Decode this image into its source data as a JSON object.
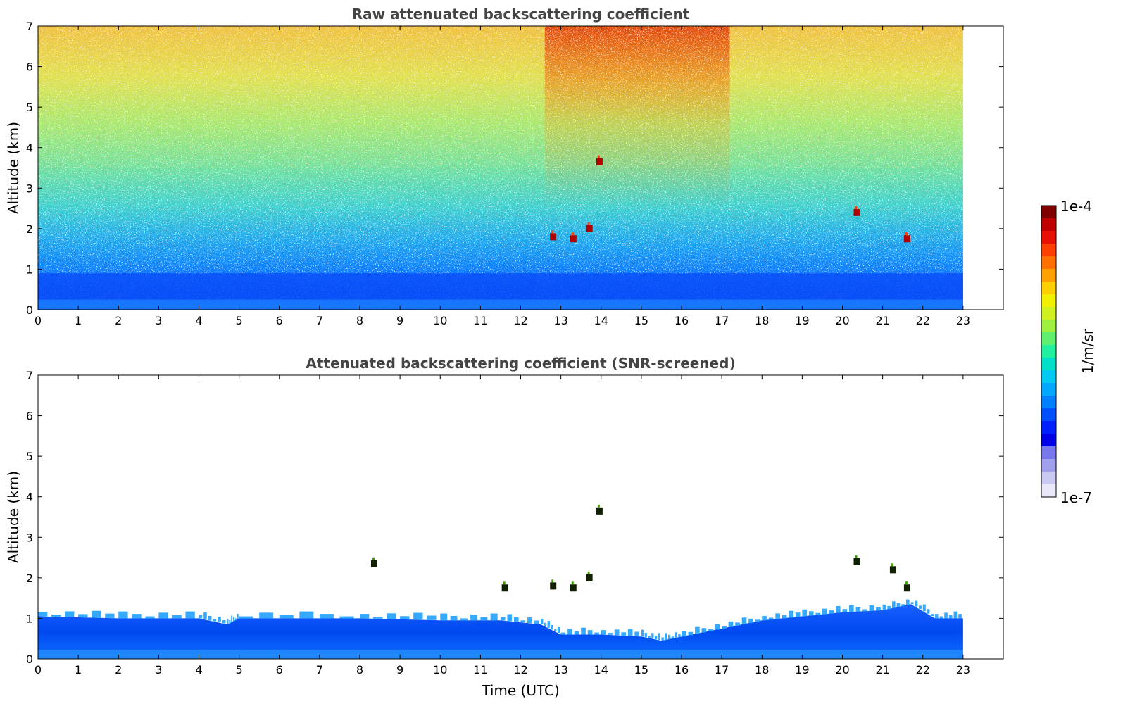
{
  "chart_data": [
    {
      "type": "heatmap",
      "title": "Raw attenuated backscattering coefficient",
      "xlabel": "",
      "ylabel": "Altitude (km)",
      "xlim": [
        0,
        24
      ],
      "ylim": [
        0,
        7
      ],
      "data_x_range": [
        0,
        23
      ],
      "xticks": [
        "0",
        "1",
        "2",
        "3",
        "4",
        "5",
        "6",
        "7",
        "8",
        "9",
        "10",
        "11",
        "12",
        "13",
        "14",
        "15",
        "16",
        "17",
        "18",
        "19",
        "20",
        "21",
        "22",
        "23"
      ],
      "yticks": [
        "0",
        "1",
        "2",
        "3",
        "4",
        "5",
        "6",
        "7"
      ],
      "color_scale": "log",
      "clim": [
        "1e-7",
        "1e-4"
      ],
      "noise_free_boundary_layer_top_km": 0.9,
      "cloud_features": [
        {
          "time_utc": 12.8,
          "altitude_km": 1.8
        },
        {
          "time_utc": 13.3,
          "altitude_km": 1.75
        },
        {
          "time_utc": 13.7,
          "altitude_km": 2.0
        },
        {
          "time_utc": 13.95,
          "altitude_km": 3.65
        },
        {
          "time_utc": 20.35,
          "altitude_km": 2.4
        },
        {
          "time_utc": 21.6,
          "altitude_km": 1.75
        }
      ]
    },
    {
      "type": "heatmap",
      "title": "Attenuated backscattering coefficient (SNR-screened)",
      "xlabel": "Time (UTC)",
      "ylabel": "Altitude (km)",
      "xlim": [
        0,
        24
      ],
      "ylim": [
        0,
        7
      ],
      "data_x_range": [
        0,
        23
      ],
      "xticks": [
        "0",
        "1",
        "2",
        "3",
        "4",
        "5",
        "6",
        "7",
        "8",
        "9",
        "10",
        "11",
        "12",
        "13",
        "14",
        "15",
        "16",
        "17",
        "18",
        "19",
        "20",
        "21",
        "22",
        "23"
      ],
      "yticks": [
        "0",
        "1",
        "2",
        "3",
        "4",
        "5",
        "6",
        "7"
      ],
      "color_scale": "log",
      "clim": [
        "1e-7",
        "1e-4"
      ],
      "boundary_layer_top_km": [
        {
          "time_utc": 0,
          "altitude_km": 1.05
        },
        {
          "time_utc": 2,
          "altitude_km": 1.0
        },
        {
          "time_utc": 4,
          "altitude_km": 1.0
        },
        {
          "time_utc": 4.7,
          "altitude_km": 0.85
        },
        {
          "time_utc": 5,
          "altitude_km": 1.0
        },
        {
          "time_utc": 8,
          "altitude_km": 1.0
        },
        {
          "time_utc": 10,
          "altitude_km": 0.95
        },
        {
          "time_utc": 11.5,
          "altitude_km": 0.95
        },
        {
          "time_utc": 12.5,
          "altitude_km": 0.85
        },
        {
          "time_utc": 13,
          "altitude_km": 0.6
        },
        {
          "time_utc": 14,
          "altitude_km": 0.6
        },
        {
          "time_utc": 15,
          "altitude_km": 0.55
        },
        {
          "time_utc": 15.5,
          "altitude_km": 0.45
        },
        {
          "time_utc": 16,
          "altitude_km": 0.55
        },
        {
          "time_utc": 17,
          "altitude_km": 0.75
        },
        {
          "time_utc": 18,
          "altitude_km": 0.95
        },
        {
          "time_utc": 19,
          "altitude_km": 1.05
        },
        {
          "time_utc": 20,
          "altitude_km": 1.15
        },
        {
          "time_utc": 21,
          "altitude_km": 1.2
        },
        {
          "time_utc": 21.7,
          "altitude_km": 1.35
        },
        {
          "time_utc": 22.3,
          "altitude_km": 1.0
        },
        {
          "time_utc": 23,
          "altitude_km": 1.0
        }
      ],
      "cloud_features": [
        {
          "time_utc": 8.35,
          "altitude_km": 2.35
        },
        {
          "time_utc": 11.6,
          "altitude_km": 1.75
        },
        {
          "time_utc": 12.8,
          "altitude_km": 1.8
        },
        {
          "time_utc": 13.3,
          "altitude_km": 1.75
        },
        {
          "time_utc": 13.7,
          "altitude_km": 2.0
        },
        {
          "time_utc": 13.95,
          "altitude_km": 3.65
        },
        {
          "time_utc": 20.35,
          "altitude_km": 2.4
        },
        {
          "time_utc": 21.25,
          "altitude_km": 2.2
        },
        {
          "time_utc": 21.6,
          "altitude_km": 1.75
        }
      ]
    }
  ],
  "colorbar": {
    "label": "1/m/sr",
    "max_label": "1e-4",
    "min_label": "1e-7",
    "colors": [
      "#e8e8f8",
      "#c8c8f0",
      "#a0a0ec",
      "#7878ec",
      "#0000e8",
      "#0020ff",
      "#0050ff",
      "#0080ff",
      "#00a8ff",
      "#00c8f0",
      "#00e0c8",
      "#20f0a0",
      "#60f070",
      "#a0f040",
      "#d0f020",
      "#f0f000",
      "#ffd000",
      "#ffa000",
      "#ff7000",
      "#ff4000",
      "#e81000",
      "#c00000",
      "#800000"
    ]
  }
}
